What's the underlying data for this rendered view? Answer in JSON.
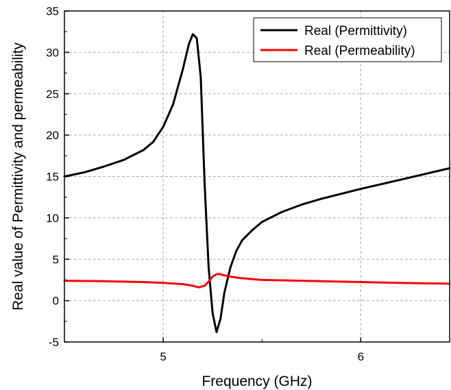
{
  "chart_data": {
    "type": "line",
    "title": "",
    "xlabel": "Frequency (GHz)",
    "ylabel": "Real value of Permittivity and permeability",
    "xlim": [
      4.5,
      6.45
    ],
    "ylim": [
      -5,
      35
    ],
    "xticks": [
      5,
      6
    ],
    "xtick_labels": [
      "5",
      "6"
    ],
    "yticks": [
      -5,
      0,
      5,
      10,
      15,
      20,
      25,
      30,
      35
    ],
    "ytick_labels": [
      "-5",
      "0",
      "5",
      "10",
      "15",
      "20",
      "25",
      "30",
      "35"
    ],
    "grid": true,
    "legend_position": "top-right",
    "series": [
      {
        "name": "Real (Permittivity)",
        "color": "#000000",
        "x": [
          4.5,
          4.6,
          4.7,
          4.8,
          4.9,
          4.95,
          5.0,
          5.05,
          5.1,
          5.13,
          5.15,
          5.17,
          5.19,
          5.21,
          5.23,
          5.25,
          5.27,
          5.29,
          5.31,
          5.34,
          5.37,
          5.4,
          5.45,
          5.5,
          5.6,
          5.7,
          5.8,
          6.0,
          6.2,
          6.45
        ],
        "y": [
          15.0,
          15.5,
          16.2,
          17.0,
          18.2,
          19.2,
          21.0,
          23.7,
          28.0,
          31.0,
          32.2,
          31.7,
          27.0,
          14.0,
          4.0,
          -1.5,
          -3.8,
          -2.2,
          1.0,
          4.0,
          6.0,
          7.3,
          8.5,
          9.5,
          10.7,
          11.6,
          12.3,
          13.5,
          14.6,
          16.0
        ]
      },
      {
        "name": "Real (Permeability)",
        "color": "#ff0000",
        "x": [
          4.5,
          4.7,
          4.9,
          5.0,
          5.1,
          5.15,
          5.18,
          5.21,
          5.23,
          5.25,
          5.27,
          5.29,
          5.31,
          5.34,
          5.4,
          5.5,
          5.7,
          6.0,
          6.2,
          6.45
        ],
        "y": [
          2.4,
          2.35,
          2.25,
          2.15,
          2.0,
          1.8,
          1.6,
          1.8,
          2.3,
          2.9,
          3.2,
          3.2,
          3.05,
          2.9,
          2.7,
          2.5,
          2.4,
          2.25,
          2.15,
          2.05
        ]
      }
    ]
  }
}
